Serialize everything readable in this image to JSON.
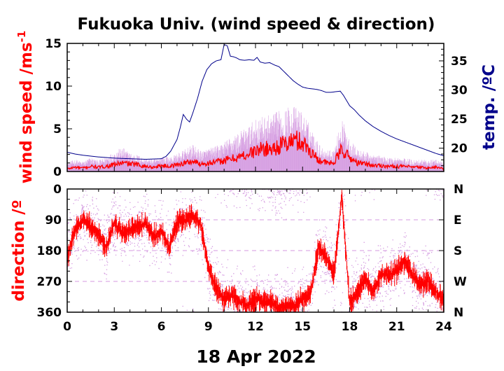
{
  "chart_data": [
    {
      "type": "line",
      "title": "Fukuoka Univ. (wind speed & direction)",
      "ylabel": "wind speed /ms",
      "ylabel_superscript": "-1",
      "y2label": "temp. /ºC",
      "xlim": [
        0,
        24
      ],
      "ylim": [
        0,
        15
      ],
      "y2lim": [
        16,
        38
      ],
      "yticks": [
        "0",
        "5",
        "10",
        "15"
      ],
      "y2ticks": [
        "20",
        "25",
        "30",
        "35"
      ],
      "xticks": [
        "0",
        "3",
        "6",
        "9",
        "12",
        "15",
        "18",
        "21",
        "24"
      ],
      "colors": {
        "speed": "#ff0000",
        "gust": "#d49ae0",
        "temperature": "#00008b"
      },
      "series": [
        {
          "key": "temperature",
          "axis": "right",
          "x": [
            0,
            0.5,
            1,
            2,
            3,
            4,
            5,
            6,
            6.3,
            6.6,
            7,
            7.2,
            7.4,
            7.6,
            7.8,
            8.0,
            8.3,
            8.6,
            8.9,
            9.2,
            9.5,
            9.8,
            10.0,
            10.2,
            10.4,
            10.6,
            10.8,
            11,
            11.3,
            11.6,
            11.9,
            12.1,
            12.3,
            12.6,
            12.9,
            13.2,
            13.5,
            13.8,
            14.1,
            14.4,
            14.7,
            15.0,
            15.3,
            15.6,
            15.9,
            16.2,
            16.5,
            16.8,
            17.1,
            17.4,
            17.6,
            17.8,
            18.0,
            18.3,
            18.6,
            19,
            19.5,
            20,
            20.5,
            21,
            21.5,
            22,
            22.5,
            23,
            23.5,
            24
          ],
          "y": [
            19.3,
            19.0,
            18.8,
            18.5,
            18.3,
            18.2,
            18.1,
            18.2,
            18.6,
            19.5,
            21.5,
            23.5,
            25.8,
            25.0,
            24.5,
            26.0,
            28.5,
            31.5,
            33.5,
            34.5,
            35.0,
            35.2,
            37.8,
            37.6,
            35.8,
            35.7,
            35.5,
            35.2,
            35.1,
            35.2,
            35.1,
            35.6,
            34.8,
            34.6,
            34.7,
            34.3,
            34.0,
            33.2,
            32.4,
            31.6,
            31.0,
            30.5,
            30.3,
            30.2,
            30.1,
            29.9,
            29.6,
            29.6,
            29.7,
            29.8,
            29.1,
            28.2,
            27.3,
            26.6,
            25.7,
            24.7,
            23.7,
            22.9,
            22.2,
            21.6,
            21.1,
            20.6,
            20.1,
            19.6,
            19.1,
            18.7
          ]
        },
        {
          "key": "speed",
          "axis": "left",
          "x": [
            0,
            0.5,
            1,
            1.5,
            2,
            2.5,
            3,
            3.5,
            4,
            4.5,
            5,
            5.5,
            6,
            6.5,
            7,
            7.5,
            8,
            8.5,
            9,
            9.5,
            10,
            10.5,
            11,
            11.5,
            12,
            12.5,
            13,
            13.5,
            14,
            14.5,
            15,
            15.5,
            16,
            16.5,
            17,
            17.5,
            18,
            18.5,
            19,
            19.5,
            20,
            20.5,
            21,
            21.5,
            22,
            22.5,
            23,
            23.5,
            24
          ],
          "y": [
            0.3,
            0.5,
            0.4,
            0.6,
            0.5,
            0.6,
            0.8,
            1.0,
            0.9,
            0.8,
            0.6,
            0.5,
            0.7,
            0.6,
            0.8,
            1.0,
            1.2,
            0.9,
            1.0,
            1.1,
            1.3,
            1.5,
            1.7,
            2.0,
            2.4,
            2.7,
            2.6,
            3.0,
            3.3,
            3.7,
            3.4,
            2.4,
            1.4,
            1.0,
            1.0,
            2.6,
            1.6,
            1.0,
            0.9,
            0.7,
            0.7,
            0.6,
            0.6,
            0.6,
            0.5,
            0.5,
            0.4,
            0.5,
            0.3
          ]
        },
        {
          "key": "gust",
          "axis": "left",
          "x": [
            0,
            0.5,
            1,
            1.5,
            2,
            2.5,
            3,
            3.5,
            4,
            4.5,
            5,
            5.5,
            6,
            6.5,
            7,
            7.5,
            8,
            8.5,
            9,
            9.5,
            10,
            10.5,
            11,
            11.5,
            12,
            12.5,
            13,
            13.5,
            14,
            14.5,
            15,
            15.5,
            16,
            16.5,
            17,
            17.5,
            18,
            18.5,
            19,
            19.5,
            20,
            20.5,
            21,
            21.5,
            22,
            22.5,
            23,
            23.5,
            24
          ],
          "y": [
            0.8,
            1.1,
            0.9,
            1.3,
            1.0,
            1.4,
            1.8,
            2.2,
            1.7,
            1.5,
            1.2,
            1.1,
            1.4,
            1.3,
            1.6,
            2.0,
            2.4,
            1.9,
            2.1,
            2.3,
            2.7,
            3.2,
            3.6,
            4.1,
            4.7,
            5.0,
            5.1,
            5.5,
            5.8,
            5.9,
            5.4,
            4.1,
            2.6,
            1.9,
            2.0,
            4.8,
            3.0,
            2.0,
            1.8,
            1.5,
            1.4,
            1.3,
            1.3,
            1.2,
            1.1,
            1.1,
            1.0,
            1.1,
            0.8
          ]
        }
      ]
    },
    {
      "type": "scatter",
      "ylabel": "direction /º",
      "xlabel": "18 Apr 2022",
      "xlim": [
        0,
        24
      ],
      "ylim": [
        360,
        0
      ],
      "yticks": [
        "0",
        "90",
        "180",
        "270",
        "360"
      ],
      "y2ticks": [
        "N",
        "E",
        "S",
        "W",
        "N"
      ],
      "xticks": [
        "0",
        "3",
        "6",
        "9",
        "12",
        "15",
        "18",
        "21",
        "24"
      ],
      "colors": {
        "direction": "#ff0000",
        "gust_direction": "#d49ae0"
      },
      "series": [
        {
          "key": "direction",
          "x": [
            0,
            0.5,
            1,
            1.5,
            2,
            2.5,
            3,
            3.5,
            4,
            4.5,
            5,
            5.5,
            6,
            6.5,
            7,
            7.5,
            8,
            8.5,
            9,
            9.5,
            10,
            10.5,
            11,
            11.5,
            12,
            12.5,
            13,
            13.5,
            14,
            14.5,
            15,
            15.5,
            16,
            16.5,
            17,
            17.5,
            18,
            18.5,
            19,
            19.5,
            20,
            20.5,
            21,
            21.5,
            22,
            22.5,
            23,
            23.5,
            24
          ],
          "y": [
            200,
            120,
            90,
            110,
            130,
            170,
            100,
            130,
            120,
            110,
            100,
            140,
            120,
            170,
            100,
            90,
            80,
            100,
            230,
            290,
            320,
            310,
            330,
            340,
            320,
            330,
            330,
            350,
            340,
            340,
            320,
            310,
            170,
            200,
            250,
            20,
            330,
            300,
            260,
            300,
            250,
            250,
            240,
            210,
            250,
            280,
            270,
            300,
            330
          ]
        }
      ]
    }
  ]
}
